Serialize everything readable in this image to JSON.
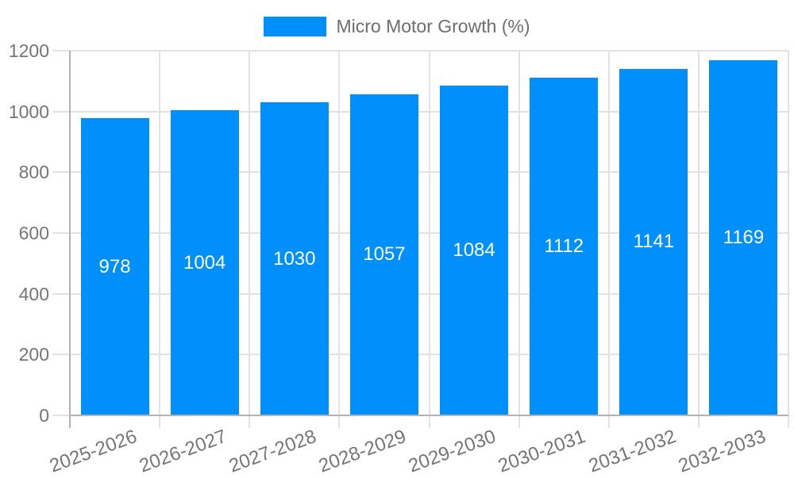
{
  "chart_data": {
    "type": "bar",
    "title": "Micro Motor Growth (%)",
    "legend_label": "Micro Motor Growth (%)",
    "legend_position": "top-center",
    "categories": [
      "2025-2026",
      "2026-2027",
      "2027-2028",
      "2028-2029",
      "2029-2030",
      "2030-2031",
      "2031-2032",
      "2032-2033"
    ],
    "series": [
      {
        "name": "Micro Motor Growth (%)",
        "values": [
          978,
          1004,
          1030,
          1057,
          1084,
          1112,
          1141,
          1169
        ]
      }
    ],
    "xlabel": "",
    "ylabel": "",
    "ylim": [
      0,
      1200
    ],
    "yticks": [
      0,
      200,
      400,
      600,
      800,
      1000,
      1200
    ],
    "grid": true,
    "value_labels_inside_bars": true,
    "colors": {
      "bar": "#008FFB",
      "value_label": "#ffffff",
      "tick_text": "#757575",
      "legend_text": "#6e6e6e",
      "gridline": "#e2e2e2",
      "axis_line": "#b3b3b3",
      "background": "#ffffff"
    }
  }
}
